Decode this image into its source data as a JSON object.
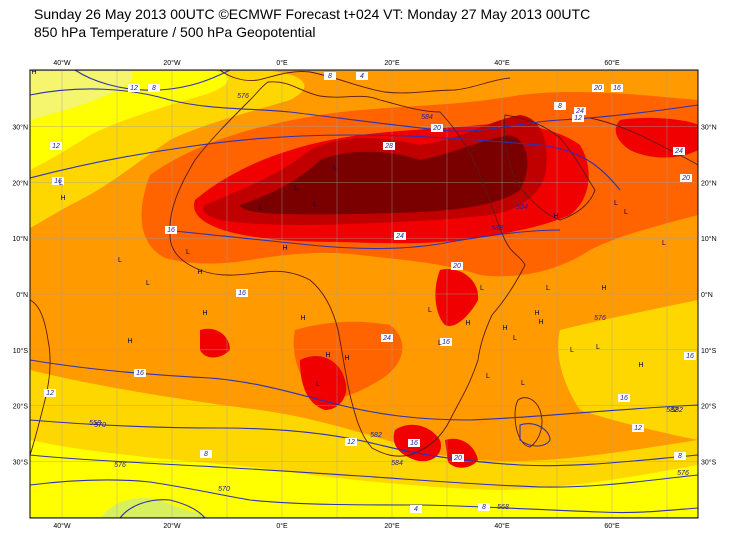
{
  "header": {
    "line1": "Sunday 26 May 2013 00UTC ©ECMWF Forecast t+024 VT: Monday 27 May 2013 00UTC",
    "line2": "850 hPa Temperature / 500 hPa Geopotential"
  },
  "axes": {
    "lon_ticks": [
      "40°W",
      "20°W",
      "0°E",
      "20°E",
      "40°E",
      "60°E"
    ],
    "lat_ticks_left": [
      "30°N",
      "20°N",
      "10°N",
      "0°N",
      "10°S",
      "20°S",
      "30°S"
    ],
    "lat_ticks_right": [
      "30°N",
      "20°N",
      "10°N",
      "0°N",
      "10°S",
      "20°S",
      "30°S"
    ]
  },
  "colors": {
    "t_lt8": "#f5f56e",
    "t_8_12": "#ffff00",
    "t_12_16": "#ffd700",
    "t_16_20": "#ff9a00",
    "t_20_24": "#ff6400",
    "t_24_28": "#f00000",
    "t_28_32": "#c00000",
    "t_gt32": "#7a0000",
    "cool_green": "#d8f060",
    "grid": "#a0a0a0",
    "contour_geo": "#3030b0",
    "coast": "#5a1a1a"
  },
  "temp_labels": [
    "12",
    "8",
    "16",
    "12",
    "12",
    "16",
    "28",
    "20",
    "24",
    "20",
    "16",
    "20",
    "24",
    "16",
    "24",
    "16",
    "20",
    "16",
    "24",
    "12",
    "16",
    "16",
    "12",
    "20",
    "16",
    "12",
    "8",
    "8",
    "4",
    "8",
    "12",
    "16",
    "8",
    "4",
    "8"
  ],
  "geo_labels": [
    "576",
    "584",
    "582",
    "584",
    "588",
    "582",
    "584",
    "576",
    "570",
    "568",
    "576",
    "570",
    "558",
    "582",
    "576"
  ],
  "pressure_marks": [
    "H",
    "L",
    "H",
    "L",
    "H",
    "L",
    "L",
    "H",
    "L",
    "L",
    "L",
    "L",
    "H",
    "H",
    "H",
    "L",
    "H",
    "H",
    "L",
    "L",
    "H",
    "L",
    "H",
    "L",
    "H",
    "L",
    "L",
    "L",
    "H",
    "L",
    "H",
    "H",
    "L",
    "L",
    "H",
    "L",
    "L"
  ]
}
